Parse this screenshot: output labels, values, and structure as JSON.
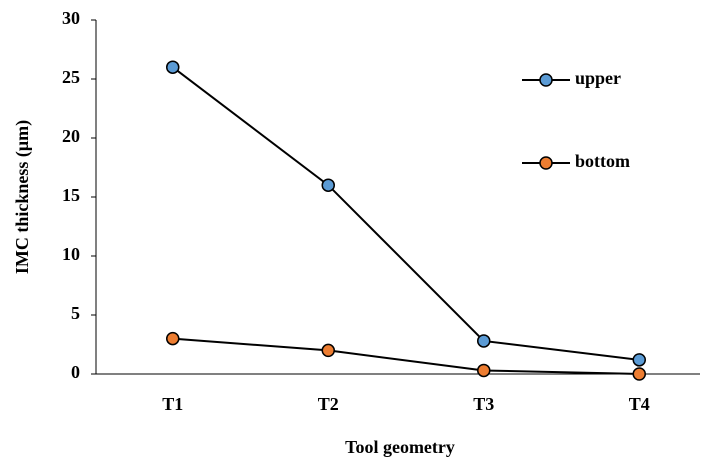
{
  "chart_data": {
    "type": "line",
    "x_label": "Tool geometry",
    "y_label": "IMC thickness (μm)",
    "categories": [
      "T1",
      "T2",
      "T3",
      "T4"
    ],
    "series": [
      {
        "name": "upper",
        "color": "#5b9bd5",
        "values": [
          26,
          16,
          2.8,
          1.2
        ]
      },
      {
        "name": "bottom",
        "color": "#ed7d31",
        "values": [
          3,
          2,
          0.3,
          0
        ]
      }
    ],
    "ylim": [
      0,
      30
    ],
    "yticks": [
      0,
      5,
      10,
      15,
      20,
      25,
      30
    ],
    "grid": false,
    "legend": "upper right"
  }
}
